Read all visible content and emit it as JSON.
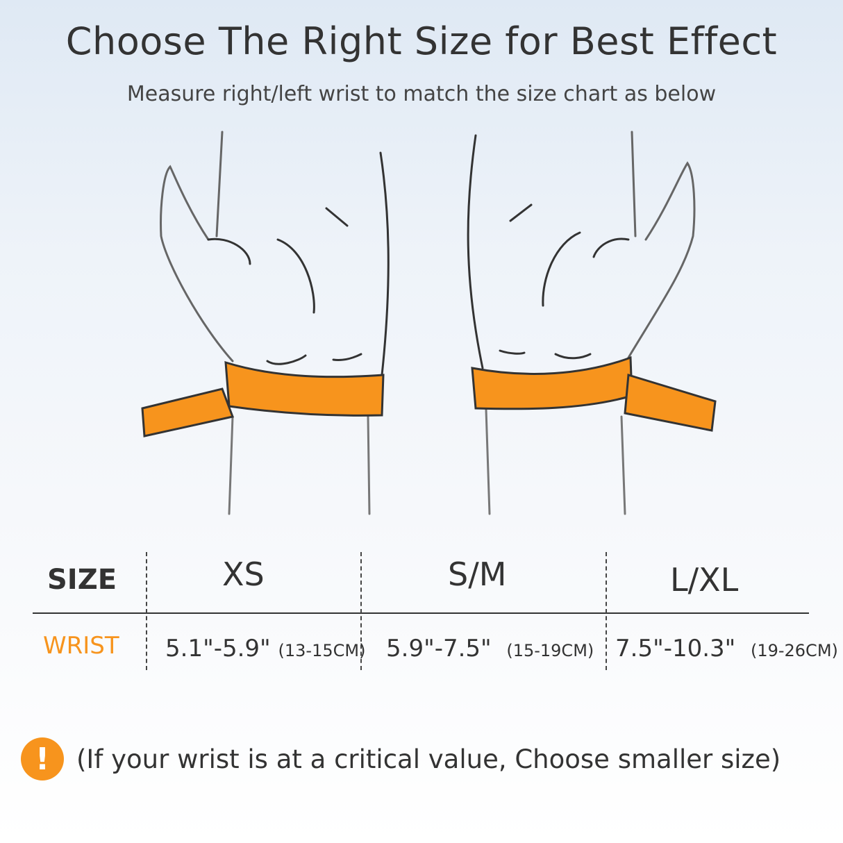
{
  "header": {
    "title": "Choose The Right Size for Best Effect",
    "subtitle": "Measure right/left wrist to match the size chart as below"
  },
  "table": {
    "row_header": "SIZE",
    "measure_label": "WRIST",
    "sizes": [
      {
        "name": "XS",
        "inches": "5.1\"-5.9\"",
        "cm": "(13-15CM)"
      },
      {
        "name": "S/M",
        "inches": "5.9\"-7.5\"",
        "cm": "(15-19CM)"
      },
      {
        "name": "L/XL",
        "inches": "7.5\"-10.3\"",
        "cm": "(19-26CM)"
      }
    ]
  },
  "note": {
    "icon": "exclamation-icon",
    "text": "(If your wrist is at a critical value, Choose smaller size)"
  },
  "colors": {
    "accent": "#f7941d",
    "text": "#333333"
  }
}
